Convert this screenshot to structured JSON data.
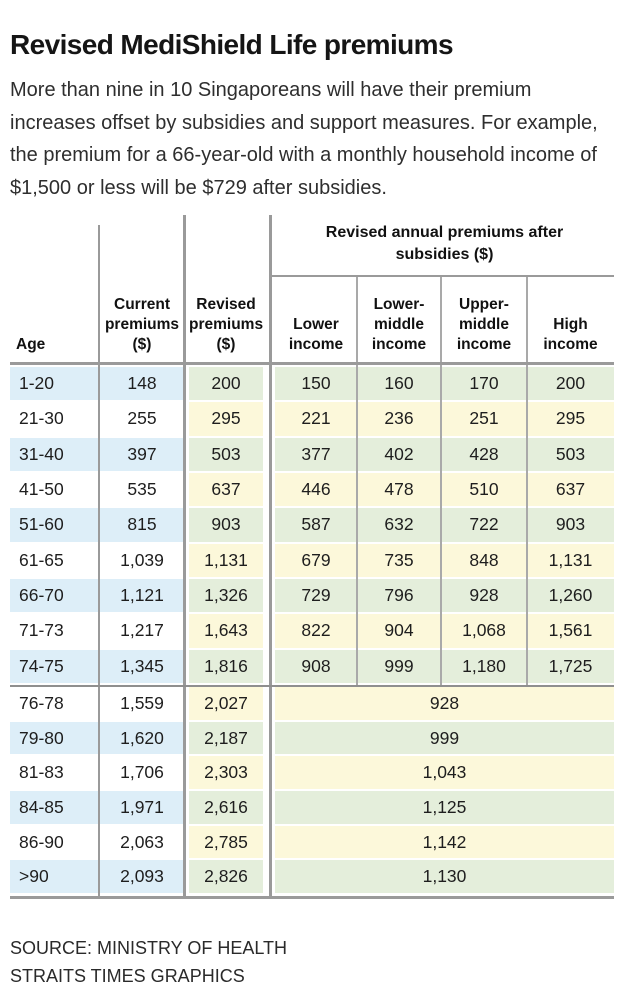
{
  "colors": {
    "row_blue": "#ddeef8",
    "row_green": "#e4eedb",
    "row_yellow": "#fcf8da",
    "grid_gray": "#9a9a9a"
  },
  "labels": {
    "age": "Age",
    "current": "Current\npremiums\n($)",
    "revised": "Revised\npremiums\n($)",
    "group": "Revised annual premiums after\nsubsidies ($)",
    "sub0": "Lower\nincome",
    "sub1": "Lower-\nmiddle\nincome",
    "sub2": "Upper-\nmiddle\nincome",
    "sub3": "High\nincome"
  },
  "chart_data": {
    "type": "table",
    "title": "Revised MediShield Life premiums",
    "subtitle": "More than nine in 10 Singaporeans will have their premium increases offset by subsidies and support measures. For example, the premium for a 66-year-old with a monthly household income of $1,500 or less will be $729 after subsidies.",
    "group_header": "Revised annual premiums after subsidies ($)",
    "columns": [
      "Age",
      "Current premiums ($)",
      "Revised premiums ($)",
      "Lower income",
      "Lower-middle income",
      "Upper-middle income",
      "High income"
    ],
    "rows": [
      {
        "age": "1-20",
        "current": "148",
        "revised": "200",
        "subsidies": [
          "150",
          "160",
          "170",
          "200"
        ]
      },
      {
        "age": "21-30",
        "current": "255",
        "revised": "295",
        "subsidies": [
          "221",
          "236",
          "251",
          "295"
        ]
      },
      {
        "age": "31-40",
        "current": "397",
        "revised": "503",
        "subsidies": [
          "377",
          "402",
          "428",
          "503"
        ]
      },
      {
        "age": "41-50",
        "current": "535",
        "revised": "637",
        "subsidies": [
          "446",
          "478",
          "510",
          "637"
        ]
      },
      {
        "age": "51-60",
        "current": "815",
        "revised": "903",
        "subsidies": [
          "587",
          "632",
          "722",
          "903"
        ]
      },
      {
        "age": "61-65",
        "current": "1,039",
        "revised": "1,131",
        "subsidies": [
          "679",
          "735",
          "848",
          "1,131"
        ]
      },
      {
        "age": "66-70",
        "current": "1,121",
        "revised": "1,326",
        "subsidies": [
          "729",
          "796",
          "928",
          "1,260"
        ]
      },
      {
        "age": "71-73",
        "current": "1,217",
        "revised": "1,643",
        "subsidies": [
          "822",
          "904",
          "1,068",
          "1,561"
        ]
      },
      {
        "age": "74-75",
        "current": "1,345",
        "revised": "1,816",
        "subsidies": [
          "908",
          "999",
          "1,180",
          "1,725"
        ]
      },
      {
        "age": "76-78",
        "current": "1,559",
        "revised": "2,027",
        "merged": "928"
      },
      {
        "age": "79-80",
        "current": "1,620",
        "revised": "2,187",
        "merged": "999"
      },
      {
        "age": "81-83",
        "current": "1,706",
        "revised": "2,303",
        "merged": "1,043"
      },
      {
        "age": "84-85",
        "current": "1,971",
        "revised": "2,616",
        "merged": "1,125"
      },
      {
        "age": "86-90",
        "current": "2,063",
        "revised": "2,785",
        "merged": "1,142"
      },
      {
        "age": ">90",
        "current": "2,093",
        "revised": "2,826",
        "merged": "1,130"
      }
    ],
    "source": [
      "SOURCE: MINISTRY OF HEALTH",
      "STRAITS TIMES GRAPHICS"
    ]
  }
}
